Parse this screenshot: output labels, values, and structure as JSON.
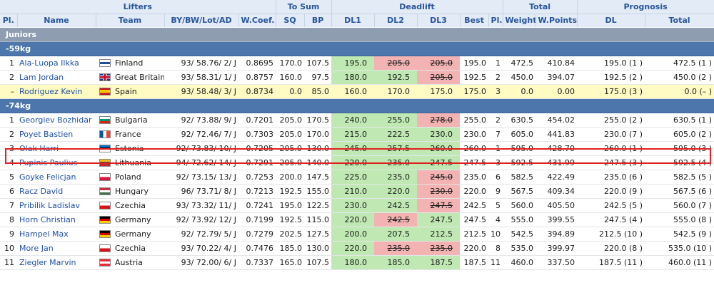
{
  "colors": {
    "header_bg": "#e2ebf6",
    "header_text": "#27559d",
    "section_bg": "#8f9db0",
    "class_bg": "#4d77ac",
    "good": "#bfe8b2",
    "bad": "#f3b3b3",
    "name_link": "#1c4fa8",
    "row_highlight": "#fffbc3",
    "selection_border": "#e02020"
  },
  "groups": {
    "lifters": "Lifters",
    "to_sum": "To Sum",
    "deadlift": "Deadlift",
    "total": "Total",
    "prognosis": "Prognosis"
  },
  "columns": {
    "pl": "Pl.",
    "name": "Name",
    "team": "Team",
    "bybw": "BY/BW/Lot/AD",
    "wcoef": "W.Coef.",
    "sq": "SQ",
    "bp": "BP",
    "dl1": "DL1",
    "dl2": "DL2",
    "dl3": "DL3",
    "best": "Best",
    "pl2": "Pl.",
    "weight": "Weight",
    "wpoints": "W.Points",
    "prog_dl": "DL",
    "prog_total": "Total"
  },
  "section": "Juniors",
  "classes": [
    {
      "label": "-59kg",
      "rows": [
        {
          "pl": "1",
          "name": "Ala-Luopa Ilkka",
          "team": "Finland",
          "flag": "finland-flag",
          "bybw": "93/ 58.76/ 2/ J",
          "wcoef": "0.8695",
          "sq": "170.0",
          "bp": "107.5",
          "dl1": {
            "v": "195.0",
            "s": "good"
          },
          "dl2": {
            "v": "205.0",
            "s": "bad"
          },
          "dl3": {
            "v": "205.0",
            "s": "bad"
          },
          "best": "195.0",
          "plc": "1",
          "weight": "472.5",
          "wpoints": "410.84",
          "prog_dl": "195.0 (1 )",
          "prog_total": "472.5 (1 )"
        },
        {
          "pl": "2",
          "name": "Lam Jordan",
          "team": "Great Britain",
          "flag": "uk-flag",
          "bybw": "93/ 58.31/ 1/ J",
          "wcoef": "0.8757",
          "sq": "160.0",
          "bp": "97.5",
          "dl1": {
            "v": "180.0",
            "s": "good"
          },
          "dl2": {
            "v": "192.5",
            "s": "good"
          },
          "dl3": {
            "v": "205.0",
            "s": "bad"
          },
          "best": "192.5",
          "plc": "2",
          "weight": "450.0",
          "wpoints": "394.07",
          "prog_dl": "192.5 (2 )",
          "prog_total": "450.0 (2 )"
        },
        {
          "pl": "–",
          "name": "Rodriguez Kevin",
          "team": "Spain",
          "flag": "spain-flag",
          "bybw": "93/ 58.48/ 3/ J",
          "wcoef": "0.8734",
          "sq": "0.0",
          "bp": "85.0",
          "dl1": {
            "v": "160.0",
            "s": "good"
          },
          "dl2": {
            "v": "170.0",
            "s": "good"
          },
          "dl3": {
            "v": "175.0",
            "s": "good"
          },
          "best": "175.0",
          "plc": "3",
          "weight": "0.0",
          "wpoints": "0.00",
          "prog_dl": "175.0 (3 )",
          "prog_total": "0.0 (– )",
          "highlight": true
        }
      ]
    },
    {
      "label": "-74kg",
      "rows": [
        {
          "pl": "1",
          "name": "Georgiev Bozhidar",
          "team": "Bulgaria",
          "flag": "bulgaria-flag",
          "bybw": "92/ 73.88/ 9/ J",
          "wcoef": "0.7201",
          "sq": "205.0",
          "bp": "170.5",
          "dl1": {
            "v": "240.0",
            "s": "good"
          },
          "dl2": {
            "v": "255.0",
            "s": "good"
          },
          "dl3": {
            "v": "278.0",
            "s": "bad"
          },
          "best": "255.0",
          "plc": "2",
          "weight": "630.5",
          "wpoints": "454.02",
          "prog_dl": "255.0 (2 )",
          "prog_total": "630.5 (1 )"
        },
        {
          "pl": "2",
          "name": "Poyet Bastien",
          "team": "France",
          "flag": "france-flag",
          "bybw": "92/ 72.46/ 7/ J",
          "wcoef": "0.7303",
          "sq": "205.0",
          "bp": "170.0",
          "dl1": {
            "v": "215.0",
            "s": "good"
          },
          "dl2": {
            "v": "222.5",
            "s": "good"
          },
          "dl3": {
            "v": "230.0",
            "s": "good"
          },
          "best": "230.0",
          "plc": "7",
          "weight": "605.0",
          "wpoints": "441.83",
          "prog_dl": "230.0 (7 )",
          "prog_total": "605.0 (2 )"
        },
        {
          "pl": "3",
          "name": "Olak Harri",
          "team": "Estonia",
          "flag": "estonia-flag",
          "bybw": "92/ 73.83/ 10/ J",
          "wcoef": "0.7205",
          "sq": "205.0",
          "bp": "130.0",
          "dl1": {
            "v": "245.0",
            "s": "good"
          },
          "dl2": {
            "v": "257.5",
            "s": "good"
          },
          "dl3": {
            "v": "260.0",
            "s": "good"
          },
          "best": "260.0",
          "plc": "1",
          "weight": "595.0",
          "wpoints": "428.70",
          "prog_dl": "260.0 (1 )",
          "prog_total": "595.0 (3 )"
        },
        {
          "pl": "4",
          "name": "Pupinis Paulius",
          "team": "Lithuania",
          "flag": "lithuania-flag",
          "bybw": "94/ 72.62/ 14/ J",
          "wcoef": "0.7291",
          "sq": "205.0",
          "bp": "140.0",
          "dl1": {
            "v": "220.0",
            "s": "good"
          },
          "dl2": {
            "v": "235.0",
            "s": "good"
          },
          "dl3": {
            "v": "247.5",
            "s": "good"
          },
          "best": "247.5",
          "plc": "3",
          "weight": "592.5",
          "wpoints": "431.99",
          "prog_dl": "247.5 (3 )",
          "prog_total": "592.5 (4 )"
        },
        {
          "pl": "5",
          "name": "Goyke Felicjan",
          "team": "Poland",
          "flag": "poland-flag",
          "bybw": "92/ 73.15/ 13/ J",
          "wcoef": "0.7253",
          "sq": "200.0",
          "bp": "147.5",
          "dl1": {
            "v": "225.0",
            "s": "good"
          },
          "dl2": {
            "v": "235.0",
            "s": "good"
          },
          "dl3": {
            "v": "245.0",
            "s": "bad"
          },
          "best": "235.0",
          "plc": "6",
          "weight": "582.5",
          "wpoints": "422.49",
          "prog_dl": "235.0 (6 )",
          "prog_total": "582.5 (5 )"
        },
        {
          "pl": "6",
          "name": "Racz David",
          "team": "Hungary",
          "flag": "hungary-flag",
          "bybw": "96/ 73.71/ 8/ J",
          "wcoef": "0.7213",
          "sq": "192.5",
          "bp": "155.0",
          "dl1": {
            "v": "210.0",
            "s": "good"
          },
          "dl2": {
            "v": "220.0",
            "s": "good"
          },
          "dl3": {
            "v": "230.0",
            "s": "bad"
          },
          "best": "220.0",
          "plc": "9",
          "weight": "567.5",
          "wpoints": "409.34",
          "prog_dl": "220.0 (9 )",
          "prog_total": "567.5 (6 )"
        },
        {
          "pl": "7",
          "name": "Pribilik Ladislav",
          "team": "Czechia",
          "flag": "czechia-flag",
          "bybw": "93/ 73.32/ 11/ J",
          "wcoef": "0.7241",
          "sq": "195.0",
          "bp": "122.5",
          "dl1": {
            "v": "230.0",
            "s": "good"
          },
          "dl2": {
            "v": "242.5",
            "s": "good"
          },
          "dl3": {
            "v": "247.5",
            "s": "bad"
          },
          "best": "242.5",
          "plc": "5",
          "weight": "560.0",
          "wpoints": "405.50",
          "prog_dl": "242.5 (5 )",
          "prog_total": "560.0 (7 )"
        },
        {
          "pl": "8",
          "name": "Horn Christian",
          "team": "Germany",
          "flag": "germany-flag",
          "bybw": "92/ 73.92/ 12/ J",
          "wcoef": "0.7199",
          "sq": "192.5",
          "bp": "115.0",
          "dl1": {
            "v": "220.0",
            "s": "good"
          },
          "dl2": {
            "v": "242.5",
            "s": "bad"
          },
          "dl3": {
            "v": "247.5",
            "s": "good"
          },
          "best": "247.5",
          "plc": "4",
          "weight": "555.0",
          "wpoints": "399.55",
          "prog_dl": "247.5 (4 )",
          "prog_total": "555.0 (8 )"
        },
        {
          "pl": "9",
          "name": "Hampel Max",
          "team": "Germany",
          "flag": "germany-flag",
          "bybw": "92/ 72.79/ 5/ J",
          "wcoef": "0.7279",
          "sq": "202.5",
          "bp": "127.5",
          "dl1": {
            "v": "200.0",
            "s": "good"
          },
          "dl2": {
            "v": "207.5",
            "s": "good"
          },
          "dl3": {
            "v": "212.5",
            "s": "good"
          },
          "best": "212.5",
          "plc": "10",
          "weight": "542.5",
          "wpoints": "394.89",
          "prog_dl": "212.5 (10 )",
          "prog_total": "542.5 (9 )"
        },
        {
          "pl": "10",
          "name": "More Jan",
          "team": "Czechia",
          "flag": "czechia-flag",
          "bybw": "93/ 70.22/ 4/ J",
          "wcoef": "0.7476",
          "sq": "185.0",
          "bp": "130.0",
          "dl1": {
            "v": "220.0",
            "s": "good"
          },
          "dl2": {
            "v": "235.0",
            "s": "bad"
          },
          "dl3": {
            "v": "235.0",
            "s": "bad"
          },
          "best": "220.0",
          "plc": "8",
          "weight": "535.0",
          "wpoints": "399.97",
          "prog_dl": "220.0 (8 )",
          "prog_total": "535.0 (10 )"
        },
        {
          "pl": "11",
          "name": "Ziegler Marvin",
          "team": "Austria",
          "flag": "austria-flag",
          "bybw": "93/ 72.00/ 6/ J",
          "wcoef": "0.7337",
          "sq": "165.0",
          "bp": "107.5",
          "dl1": {
            "v": "180.0",
            "s": "good"
          },
          "dl2": {
            "v": "185.0",
            "s": "good"
          },
          "dl3": {
            "v": "187.5",
            "s": "good"
          },
          "best": "187.5",
          "plc": "11",
          "weight": "460.0",
          "wpoints": "337.50",
          "prog_dl": "187.5 (11 )",
          "prog_total": "460.0 (11 )"
        }
      ]
    }
  ]
}
